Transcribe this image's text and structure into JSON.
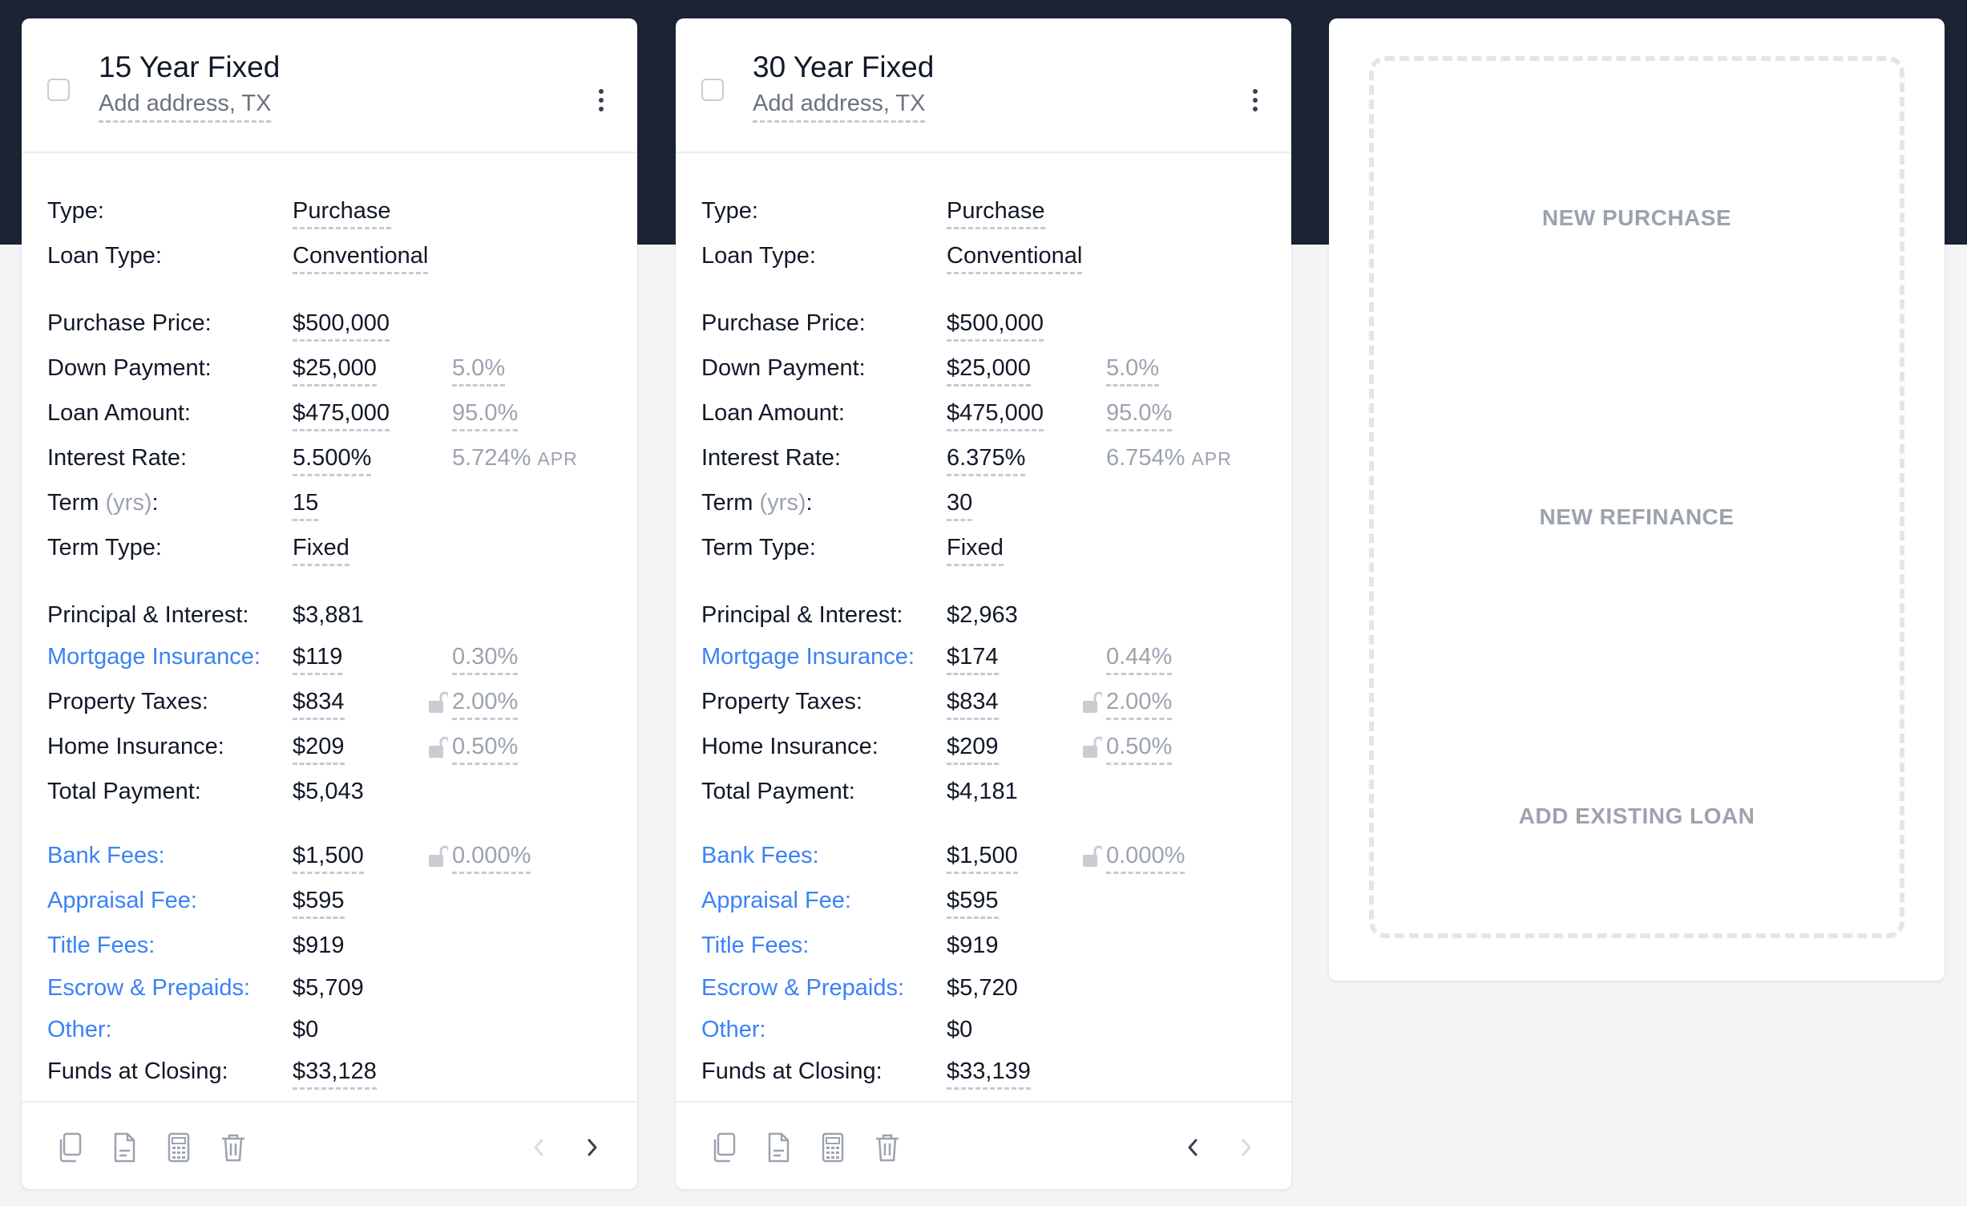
{
  "colors": {
    "topbar": "#1b2335",
    "link": "#3b82f6",
    "muted": "#9ca3af",
    "text": "#111827"
  },
  "cards": [
    {
      "title": "15 Year Fixed",
      "address": "Add address, TX",
      "type_label": "Type:",
      "type_value": "Purchase",
      "loan_type_label": "Loan Type:",
      "loan_type_value": "Conventional",
      "purchase_price_label": "Purchase Price:",
      "purchase_price_value": "$500,000",
      "down_payment_label": "Down Payment:",
      "down_payment_value": "$25,000",
      "down_payment_pct": "5.0%",
      "loan_amount_label": "Loan Amount:",
      "loan_amount_value": "$475,000",
      "loan_amount_pct": "95.0%",
      "interest_rate_label": "Interest Rate:",
      "interest_rate_value": "5.500%",
      "apr_value": "5.724%",
      "apr_suffix": "APR",
      "term_label": "Term",
      "term_unit": "(yrs)",
      "term_colon": ":",
      "term_value": "15",
      "term_type_label": "Term Type:",
      "term_type_value": "Fixed",
      "pi_label": "Principal & Interest:",
      "pi_value": "$3,881",
      "mi_label": "Mortgage Insurance:",
      "mi_value": "$119",
      "mi_pct": "0.30%",
      "tax_label": "Property Taxes:",
      "tax_value": "$834",
      "tax_pct": "2.00%",
      "hoi_label": "Home Insurance:",
      "hoi_value": "$209",
      "hoi_pct": "0.50%",
      "total_label": "Total Payment:",
      "total_value": "$5,043",
      "bank_label": "Bank Fees:",
      "bank_value": "$1,500",
      "bank_pct": "0.000%",
      "appraisal_label": "Appraisal Fee:",
      "appraisal_value": "$595",
      "title_fees_label": "Title Fees:",
      "title_fees_value": "$919",
      "escrow_label": "Escrow & Prepaids:",
      "escrow_value": "$5,709",
      "other_label": "Other:",
      "other_value": "$0",
      "funds_label": "Funds at Closing:",
      "funds_value": "$33,128",
      "footer_icons": [
        "copy-icon",
        "document-icon",
        "calculator-icon",
        "trash-icon"
      ],
      "nav": {
        "prev_enabled": false,
        "next_enabled": true
      }
    },
    {
      "title": "30 Year Fixed",
      "address": "Add address, TX",
      "type_label": "Type:",
      "type_value": "Purchase",
      "loan_type_label": "Loan Type:",
      "loan_type_value": "Conventional",
      "purchase_price_label": "Purchase Price:",
      "purchase_price_value": "$500,000",
      "down_payment_label": "Down Payment:",
      "down_payment_value": "$25,000",
      "down_payment_pct": "5.0%",
      "loan_amount_label": "Loan Amount:",
      "loan_amount_value": "$475,000",
      "loan_amount_pct": "95.0%",
      "interest_rate_label": "Interest Rate:",
      "interest_rate_value": "6.375%",
      "apr_value": "6.754%",
      "apr_suffix": "APR",
      "term_label": "Term",
      "term_unit": "(yrs)",
      "term_colon": ":",
      "term_value": "30",
      "term_type_label": "Term Type:",
      "term_type_value": "Fixed",
      "pi_label": "Principal & Interest:",
      "pi_value": "$2,963",
      "mi_label": "Mortgage Insurance:",
      "mi_value": "$174",
      "mi_pct": "0.44%",
      "tax_label": "Property Taxes:",
      "tax_value": "$834",
      "tax_pct": "2.00%",
      "hoi_label": "Home Insurance:",
      "hoi_value": "$209",
      "hoi_pct": "0.50%",
      "total_label": "Total Payment:",
      "total_value": "$4,181",
      "bank_label": "Bank Fees:",
      "bank_value": "$1,500",
      "bank_pct": "0.000%",
      "appraisal_label": "Appraisal Fee:",
      "appraisal_value": "$595",
      "title_fees_label": "Title Fees:",
      "title_fees_value": "$919",
      "escrow_label": "Escrow & Prepaids:",
      "escrow_value": "$5,720",
      "other_label": "Other:",
      "other_value": "$0",
      "funds_label": "Funds at Closing:",
      "funds_value": "$33,139",
      "footer_icons": [
        "copy-icon",
        "document-icon",
        "calculator-icon",
        "trash-icon"
      ],
      "nav": {
        "prev_enabled": true,
        "next_enabled": false
      }
    }
  ],
  "new_card": {
    "purchase": "NEW PURCHASE",
    "refinance": "NEW REFINANCE",
    "existing": "ADD EXISTING LOAN"
  }
}
